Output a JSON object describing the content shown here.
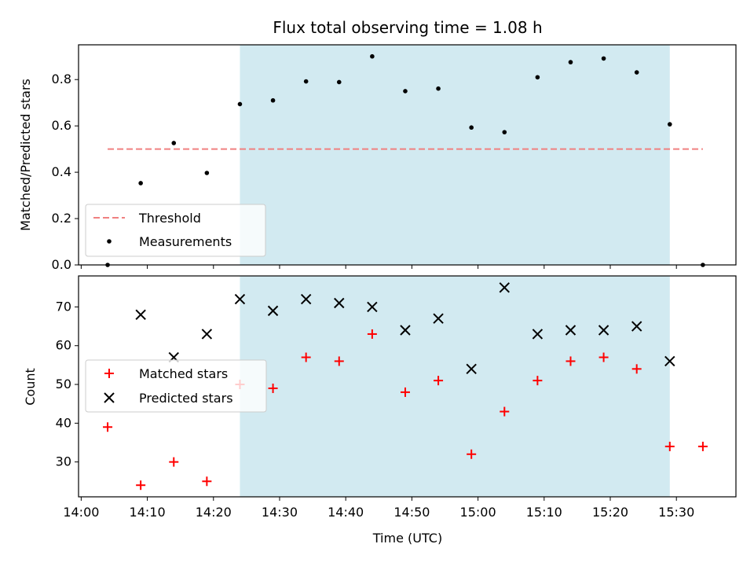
{
  "chart_data": [
    {
      "type": "scatter",
      "title": "Flux total observing time = 1.08 h",
      "xlabel": "",
      "ylabel": "Matched/Predicted stars",
      "ylim": [
        0,
        0.95
      ],
      "yticks": [
        "0.0",
        "0.2",
        "0.4",
        "0.6",
        "0.8"
      ],
      "ytick_values": [
        0,
        0.2,
        0.4,
        0.6,
        0.8
      ],
      "shaded_span": {
        "start": "14:24",
        "end": "15:29",
        "color": "#add8e6"
      },
      "threshold": {
        "name": "Threshold",
        "value": 0.5,
        "x_start": "14:04",
        "x_end": "15:34",
        "color": "#f08080"
      },
      "series": [
        {
          "name": "Measurements",
          "marker": "dot",
          "color": "#000000",
          "x": [
            "14:04",
            "14:09",
            "14:14",
            "14:19",
            "14:24",
            "14:29",
            "14:34",
            "14:39",
            "14:44",
            "14:49",
            "14:54",
            "14:59",
            "15:04",
            "15:09",
            "15:14",
            "15:19",
            "15:24",
            "15:29",
            "15:34"
          ],
          "y": [
            0.0,
            0.353,
            0.526,
            0.397,
            0.694,
            0.71,
            0.792,
            0.789,
            0.9,
            0.75,
            0.761,
            0.593,
            0.573,
            0.81,
            0.875,
            0.891,
            0.831,
            0.607,
            0.0
          ]
        }
      ],
      "legend": {
        "position": "lower-left",
        "entries": [
          "Threshold",
          "Measurements"
        ]
      }
    },
    {
      "type": "scatter",
      "title": "",
      "xlabel": "Time (UTC)",
      "ylabel": "Count",
      "ylim": [
        21,
        78
      ],
      "yticks": [
        "30",
        "40",
        "50",
        "60",
        "70"
      ],
      "ytick_values": [
        30,
        40,
        50,
        60,
        70
      ],
      "xticks": [
        "14:00",
        "14:10",
        "14:20",
        "14:30",
        "14:40",
        "14:50",
        "15:00",
        "15:10",
        "15:20",
        "15:30"
      ],
      "shaded_span": {
        "start": "14:24",
        "end": "15:29",
        "color": "#add8e6"
      },
      "series": [
        {
          "name": "Matched stars",
          "marker": "plus",
          "color": "#ff0000",
          "x": [
            "14:04",
            "14:09",
            "14:14",
            "14:19",
            "14:24",
            "14:29",
            "14:34",
            "14:39",
            "14:44",
            "14:49",
            "14:54",
            "14:59",
            "15:04",
            "15:09",
            "15:14",
            "15:19",
            "15:24",
            "15:29",
            "15:34"
          ],
          "y": [
            39,
            24,
            30,
            25,
            50,
            49,
            57,
            56,
            63,
            48,
            51,
            32,
            43,
            51,
            56,
            57,
            54,
            34,
            34
          ]
        },
        {
          "name": "Predicted stars",
          "marker": "x",
          "color": "#000000",
          "x": [
            "14:09",
            "14:14",
            "14:19",
            "14:24",
            "14:29",
            "14:34",
            "14:39",
            "14:44",
            "14:49",
            "14:54",
            "14:59",
            "15:04",
            "15:09",
            "15:14",
            "15:19",
            "15:24",
            "15:29"
          ],
          "y": [
            68,
            57,
            63,
            72,
            69,
            72,
            71,
            70,
            64,
            67,
            54,
            75,
            63,
            64,
            64,
            65,
            56
          ]
        }
      ],
      "legend": {
        "position": "center-left",
        "entries": [
          "Matched stars",
          "Predicted stars"
        ]
      }
    }
  ]
}
